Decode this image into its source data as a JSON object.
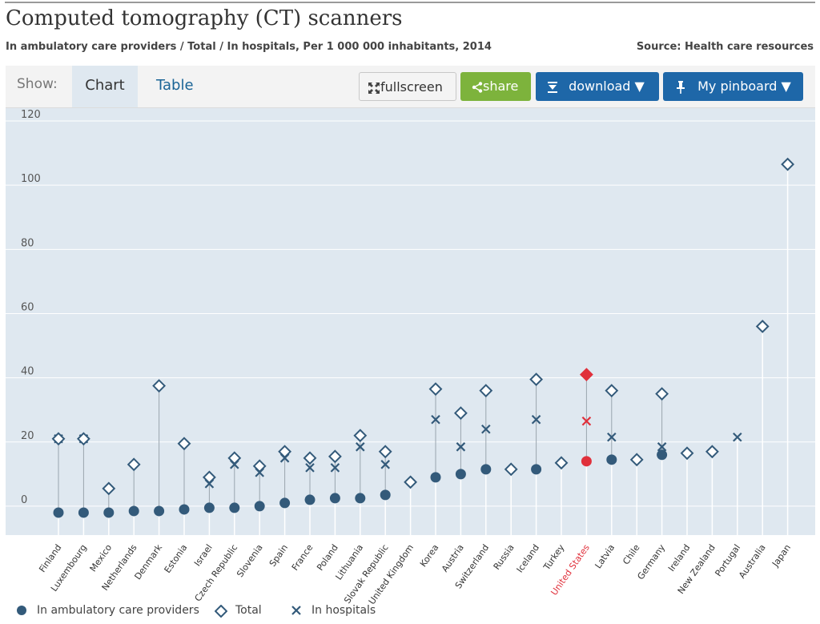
{
  "title": "Computed tomography (CT) scanners",
  "subtitle": "In ambulatory care providers / Total / In hospitals, Per 1 000 000 inhabitants, 2014",
  "source": "Source: Health care resources",
  "toolbar": {
    "show_label": "Show:",
    "tabs": [
      "Chart",
      "Table"
    ],
    "fullscreen_label": "fullscreen",
    "share_label": "share",
    "download_label": "download ▼",
    "pinboard_label": "My pinboard ▼"
  },
  "colors": {
    "series": "#335a7a",
    "highlight": "#e0303b",
    "plot_bg": "#dfe8f0",
    "share_green": "#7db33c",
    "button_blue": "#1e67a8"
  },
  "icons": {
    "fullscreen": "fullscreen-icon",
    "share": "share-icon",
    "download": "download-icon",
    "pinboard": "pin-icon"
  },
  "chart_data": {
    "type": "scatter",
    "title": "Computed tomography (CT) scanners",
    "ylim": [
      -9,
      124
    ],
    "yticks": [
      0,
      20,
      40,
      60,
      80,
      100,
      120
    ],
    "grid": true,
    "legend_position": "bottom-left",
    "highlight_category": "United States",
    "categories": [
      "Finland",
      "Luxembourg",
      "Mexico",
      "Netherlands",
      "Denmark",
      "Estonia",
      "Israel",
      "Czech Republic",
      "Slovenia",
      "Spain",
      "France",
      "Poland",
      "Lithuania",
      "Slovak Republic",
      "United Kingdom",
      "Korea",
      "Austria",
      "Switzerland",
      "Russia",
      "Iceland",
      "Turkey",
      "United States",
      "Latvia",
      "Chile",
      "Germany",
      "Ireland",
      "New Zealand",
      "Portugal",
      "Australia",
      "Japan"
    ],
    "series": [
      {
        "name": "In ambulatory care providers",
        "marker": "circle",
        "values": [
          -2,
          -2,
          -2,
          -1.5,
          -1.5,
          -1,
          -0.5,
          -0.5,
          0,
          1,
          2,
          2.5,
          2.5,
          3.5,
          null,
          9,
          10,
          11.5,
          null,
          11.5,
          null,
          14,
          14.5,
          null,
          16,
          null,
          null,
          null,
          null,
          null
        ]
      },
      {
        "name": "Total",
        "marker": "diamond",
        "values": [
          21,
          21,
          5.5,
          13,
          37.5,
          19.5,
          9,
          15,
          12.5,
          17,
          15,
          15.5,
          22,
          17,
          7.5,
          36.5,
          29,
          36,
          11.5,
          39.5,
          13.5,
          41,
          36,
          14.5,
          35,
          16.5,
          17,
          null,
          56,
          106.5
        ]
      },
      {
        "name": "In hospitals",
        "marker": "x",
        "values": [
          21,
          21,
          null,
          null,
          null,
          null,
          7,
          13,
          10.5,
          15,
          12,
          12,
          18.5,
          13,
          null,
          27,
          18.5,
          24,
          null,
          27,
          null,
          26.5,
          21.5,
          null,
          18.5,
          null,
          null,
          21.5,
          null,
          null
        ]
      }
    ]
  }
}
